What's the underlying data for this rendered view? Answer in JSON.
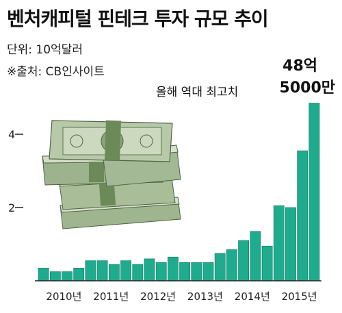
{
  "chart_data": {
    "type": "bar",
    "title": "벤처캐피털 핀테크 투자 규모 추이",
    "unit": "단위: 10억달러",
    "source": "※출처: CB인사이트",
    "annotation": {
      "text": "올해 역대 최고치",
      "value_line1": "48억",
      "value_line2": "5000만"
    },
    "x_tick_labels": [
      "2010년",
      "2011년",
      "2012년",
      "2013년",
      "2014년",
      "2015년"
    ],
    "y_ticks": [
      2,
      4
    ],
    "ylim": [
      0,
      5
    ],
    "values": [
      0.35,
      0.25,
      0.25,
      0.35,
      0.55,
      0.55,
      0.45,
      0.55,
      0.45,
      0.6,
      0.5,
      0.65,
      0.5,
      0.5,
      0.5,
      0.75,
      0.85,
      1.1,
      1.35,
      0.95,
      2.05,
      2.0,
      3.55,
      4.85
    ],
    "colors": {
      "bar": "#1fab8e",
      "bar_stroke": "#0e7a64",
      "axis": "#222222"
    }
  }
}
